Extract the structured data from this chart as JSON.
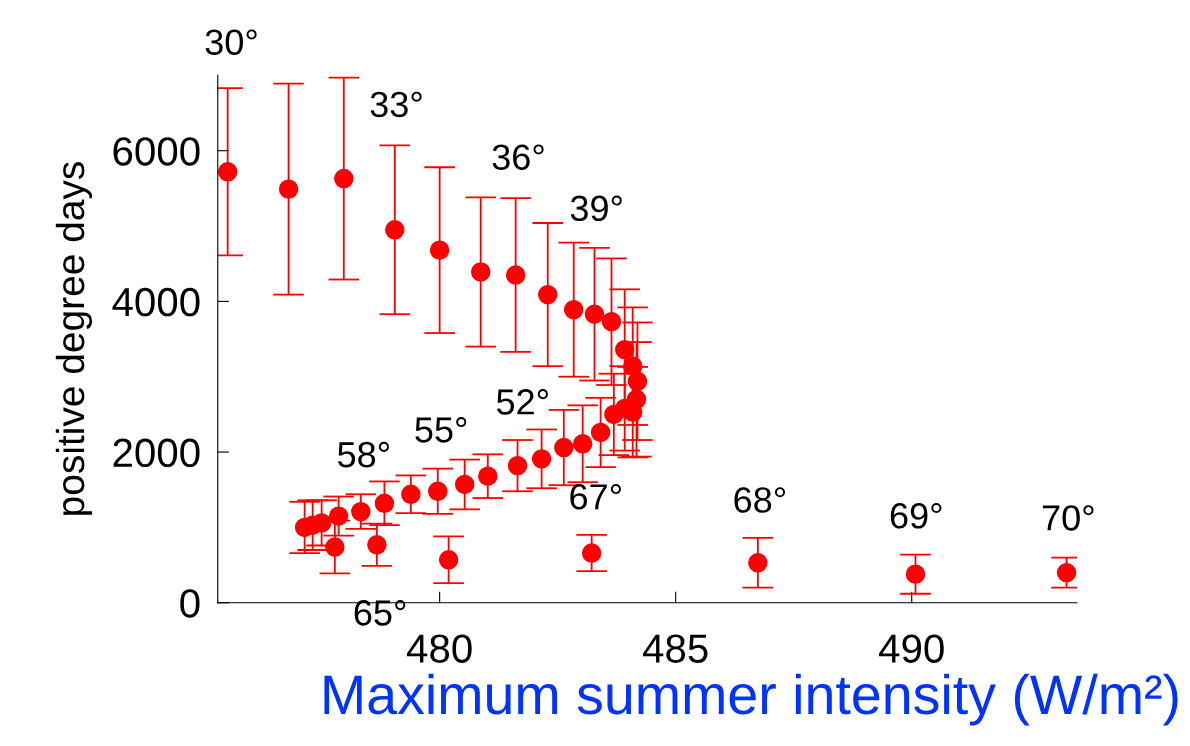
{
  "chart_data": {
    "type": "scatter",
    "xlabel": "Maximum summer intensity (W/m²)",
    "ylabel": "positive degree days",
    "xlim": [
      475.3,
      493.5
    ],
    "ylim": [
      0,
      7000
    ],
    "xticks": [
      480,
      485,
      490
    ],
    "yticks": [
      0,
      2000,
      4000,
      6000
    ],
    "marker": "circle",
    "series": [
      {
        "color": "#ff0000",
        "x": [
          475.51,
          476.8,
          477.97,
          479.05,
          480.0,
          480.87,
          481.61,
          482.29,
          482.84,
          483.28,
          483.64,
          483.92,
          484.09,
          484.19,
          484.17,
          484.09,
          483.92,
          483.69,
          483.41,
          483.03,
          482.63,
          482.16,
          481.65,
          481.02,
          480.53,
          479.96,
          479.39,
          478.83,
          478.33,
          477.86,
          477.5,
          477.31,
          477.14,
          477.78,
          478.67,
          480.19,
          483.22,
          486.74,
          490.08,
          493.28
        ],
        "values": [
          5720,
          5490,
          5630,
          4950,
          4680,
          4390,
          4350,
          4090,
          3890,
          3830,
          3730,
          3360,
          3140,
          2940,
          2700,
          2530,
          2580,
          2500,
          2260,
          2110,
          2060,
          1910,
          1820,
          1680,
          1570,
          1480,
          1440,
          1320,
          1210,
          1150,
          1060,
          1030,
          1000,
          740,
          770,
          570,
          660,
          530,
          380,
          400
        ],
        "errors": [
          1110,
          1400,
          1340,
          1120,
          1100,
          990,
          1020,
          950,
          890,
          880,
          840,
          800,
          780,
          780,
          760,
          600,
          560,
          540,
          460,
          510,
          500,
          390,
          340,
          290,
          330,
          300,
          250,
          290,
          230,
          260,
          300,
          330,
          340,
          350,
          280,
          310,
          240,
          330,
          260,
          200
        ]
      }
    ],
    "annotations": [
      "30°",
      "33°",
      "36°",
      "39°",
      "52°",
      "55°",
      "58°",
      "65°",
      "67°",
      "68°",
      "69°",
      "70°"
    ]
  }
}
